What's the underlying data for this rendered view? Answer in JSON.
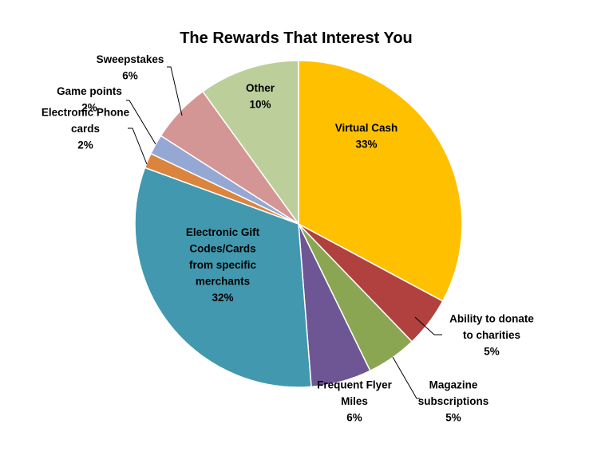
{
  "chart_data": {
    "type": "pie",
    "title": "The Rewards That Interest You",
    "legend": "none",
    "slices": [
      {
        "label_lines": [
          "Virtual Cash",
          "33%"
        ],
        "value": 33,
        "color": "#FFC000"
      },
      {
        "label_lines": [
          "Ability to donate",
          "to charities",
          "5%"
        ],
        "value": 5,
        "color": "#B0413E"
      },
      {
        "label_lines": [
          "Magazine",
          "subscriptions",
          "5%"
        ],
        "value": 5,
        "color": "#8AA652"
      },
      {
        "label_lines": [
          "Frequent Flyer",
          "Miles",
          "6%"
        ],
        "value": 6,
        "color": "#6E5694"
      },
      {
        "label_lines": [
          "Electronic Gift",
          "Codes/Cards",
          "from specific",
          "merchants",
          "32%"
        ],
        "value": 32,
        "color": "#4298AE"
      },
      {
        "label_lines": [
          "Electronic Phone",
          "cards",
          "2%"
        ],
        "value": 1.5,
        "color": "#DB843D"
      },
      {
        "label_lines": [
          "Game points",
          "2%"
        ],
        "value": 2,
        "color": "#95A8D4"
      },
      {
        "label_lines": [
          "Sweepstakes",
          "6%"
        ],
        "value": 6,
        "color": "#D49694"
      },
      {
        "label_lines": [
          "Other",
          "10%"
        ],
        "value": 10,
        "color": "#BCCF9B"
      }
    ]
  }
}
